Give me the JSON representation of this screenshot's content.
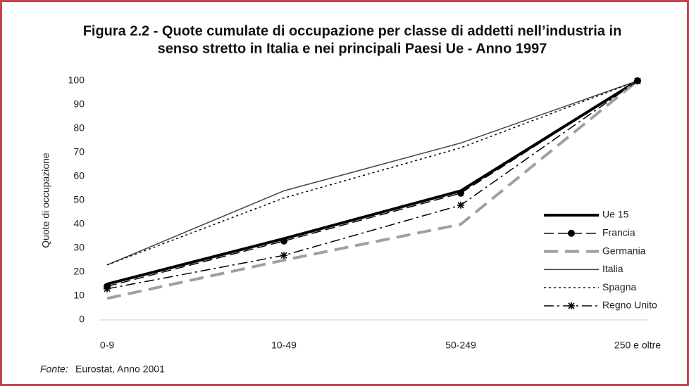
{
  "chart_data": {
    "type": "line",
    "title": [
      "Figura 2.2 - Quote cumulate di occupazione per classe di addetti nell’industria in",
      "senso stretto in Italia e nei principali Paesi Ue - Anno 1997"
    ],
    "y_label": "Quote di occupazione",
    "categories": [
      "0-9",
      "10-49",
      "50-249",
      "250 e oltre"
    ],
    "ylim": [
      0,
      100
    ],
    "yticks": [
      0,
      10,
      20,
      30,
      40,
      50,
      60,
      70,
      80,
      90,
      100
    ],
    "series": [
      {
        "name": "Ue 15",
        "color": "#000000",
        "width": 4,
        "dash": "none",
        "marker": "none",
        "values": [
          15,
          34,
          54,
          100
        ]
      },
      {
        "name": "Francia",
        "color": "#000000",
        "width": 1.5,
        "dash": "14 6",
        "marker": "circle",
        "values": [
          14,
          33,
          53,
          100
        ]
      },
      {
        "name": "Germania",
        "color": "#a0a0a0",
        "width": 4,
        "dash": "20 10",
        "marker": "none",
        "values": [
          9,
          25,
          40,
          100
        ]
      },
      {
        "name": "Italia",
        "color": "#444444",
        "width": 1.5,
        "dash": "none",
        "marker": "none",
        "values": [
          23,
          54,
          74,
          100
        ]
      },
      {
        "name": "Spagna",
        "color": "#000000",
        "width": 1.5,
        "dash": "3 4",
        "marker": "none",
        "values": [
          23,
          51,
          72,
          100
        ]
      },
      {
        "name": "Regno Unito",
        "color": "#000000",
        "width": 1.5,
        "dash": "14 5 3 5",
        "marker": "asterisk",
        "values": [
          13,
          27,
          48,
          100
        ]
      }
    ],
    "source_label": "Fonte:",
    "source": "Eurostat, Anno 2001"
  }
}
